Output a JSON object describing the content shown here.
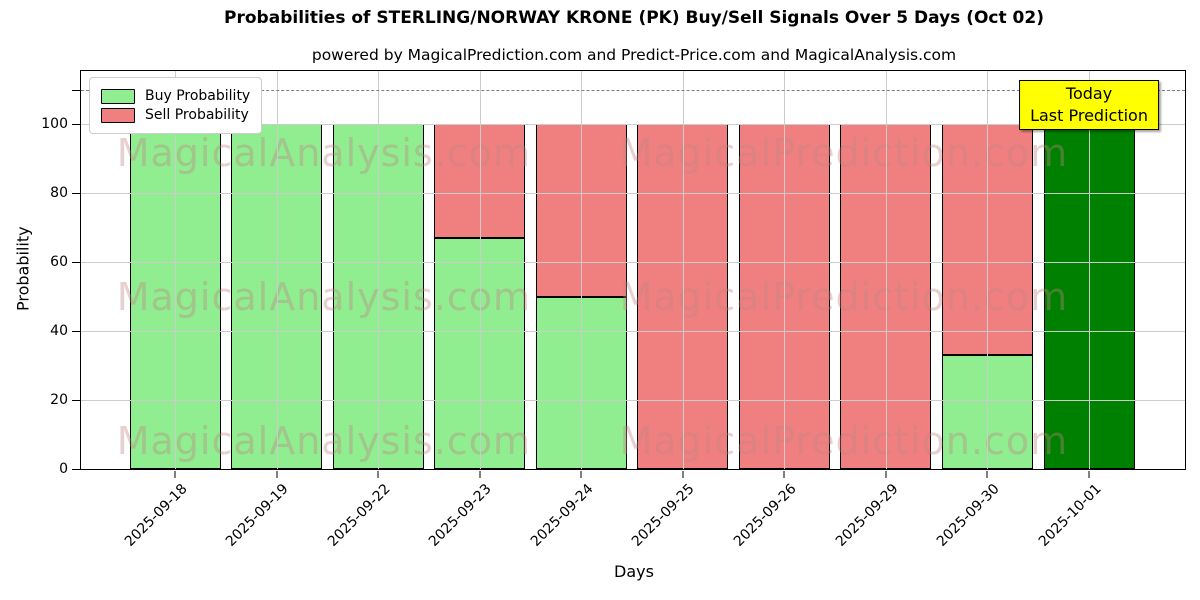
{
  "figure": {
    "title": "Probabilities of STERLING/NORWAY KRONE (PK) Buy/Sell Signals Over 5 Days (Oct 02)",
    "subtitle": "powered by MagicalPrediction.com and Predict-Price.com and MagicalAnalysis.com"
  },
  "chart_data": {
    "type": "bar",
    "stacked": true,
    "title": "Probabilities of STERLING/NORWAY KRONE (PK) Buy/Sell Signals Over 5 Days (Oct 02)",
    "xlabel": "Days",
    "ylabel": "Probability",
    "categories": [
      "2025-09-18",
      "2025-09-19",
      "2025-09-22",
      "2025-09-23",
      "2025-09-24",
      "2025-09-25",
      "2025-09-26",
      "2025-09-29",
      "2025-09-30",
      "2025-10-01"
    ],
    "series": [
      {
        "name": "Buy Probability",
        "color": "#90EE90",
        "values": [
          100,
          100,
          100,
          67,
          50,
          0,
          0,
          0,
          33,
          100
        ]
      },
      {
        "name": "Sell Probability",
        "color": "#F08080",
        "values": [
          0,
          0,
          0,
          33,
          50,
          100,
          100,
          100,
          67,
          0
        ]
      }
    ],
    "today_bar": {
      "index": 9,
      "color": "#008000"
    },
    "ylim": [
      0,
      115.4
    ],
    "yticks": [
      0,
      20,
      40,
      60,
      80,
      100
    ],
    "extra_unlabeled_ytick": 110,
    "dashed_line_y": 110,
    "grid": true,
    "legend_position": "upper left"
  },
  "legend": {
    "items": [
      {
        "label": "Buy Probability",
        "color": "#90EE90"
      },
      {
        "label": "Sell Probability",
        "color": "#F08080"
      }
    ]
  },
  "today_annotation": {
    "line1": "Today",
    "line2": "Last Prediction",
    "bg_color": "#FFFF00"
  },
  "watermarks": {
    "left_text": "MagicalAnalysis.com",
    "right_text": "MagicalPrediction.com"
  },
  "colors": {
    "buy": "#90EE90",
    "sell": "#F08080",
    "today": "#008000",
    "annotation_bg": "#FFFF00",
    "dashed_line": "#7f7f7f",
    "grid": "#cccccc"
  }
}
